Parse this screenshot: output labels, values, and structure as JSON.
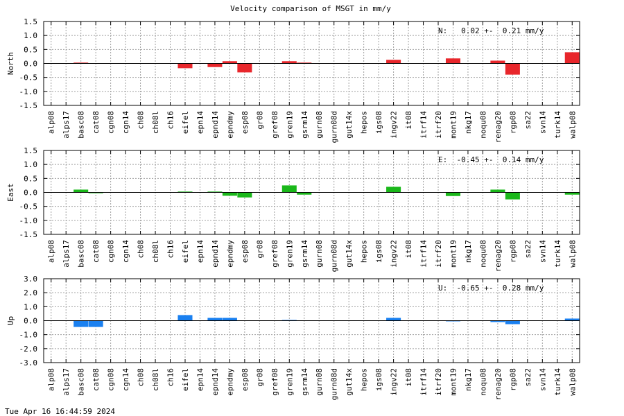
{
  "footer_timestamp": "Tue Apr 16 16:44:59 2024",
  "chart_data": [
    {
      "type": "bar",
      "title": "Velocity comparison of MSGT in mm/y",
      "ylabel": "North",
      "xlabel": "",
      "ylim": [
        -1.5,
        1.5
      ],
      "yticks": [
        "1.5",
        "1.0",
        "0.5",
        "0.0",
        "-0.5",
        "-1.0",
        "-1.5"
      ],
      "grid": true,
      "summary": "N:   0.02 +-  0.21 mm/y",
      "color": "#e8262b",
      "categories": [
        "alp08",
        "alps17",
        "basc08",
        "cat08",
        "cgn08",
        "cgn14",
        "ch08",
        "ch08l",
        "ch16",
        "eifel",
        "epn14",
        "epnd14",
        "epndmy",
        "esp08",
        "gr08",
        "gref08",
        "gren19",
        "gsrm14",
        "gurn08",
        "gurn08d",
        "gut14x",
        "hepos",
        "igs08",
        "ingv22",
        "it08",
        "itrf14",
        "itrf20",
        "mont19",
        "nkg17",
        "noqu08",
        "renag20",
        "rgp08",
        "sa22",
        "svn14",
        "turk14",
        "walp08"
      ],
      "values": [
        0,
        0,
        0.03,
        0,
        0,
        0,
        0,
        0,
        0,
        -0.17,
        0,
        -0.13,
        0.08,
        -0.32,
        0,
        0,
        0.08,
        0.03,
        0,
        0,
        0,
        0,
        0,
        0.13,
        0,
        0,
        0,
        0.18,
        0,
        0,
        0.1,
        -0.4,
        0,
        0,
        0,
        0.4
      ]
    },
    {
      "type": "bar",
      "title": "",
      "ylabel": "East",
      "xlabel": "",
      "ylim": [
        -1.5,
        1.5
      ],
      "yticks": [
        "1.5",
        "1.0",
        "0.5",
        "0.0",
        "-0.5",
        "-1.0",
        "-1.5"
      ],
      "grid": true,
      "summary": "E:  -0.45 +-  0.14 mm/y",
      "color": "#1ab81a",
      "categories": [
        "alp08",
        "alps17",
        "basc08",
        "cat08",
        "cgn08",
        "cgn14",
        "ch08",
        "ch08l",
        "ch16",
        "eifel",
        "epn14",
        "epnd14",
        "epndmy",
        "esp08",
        "gr08",
        "gref08",
        "gren19",
        "gsrm14",
        "gurn08",
        "gurn08d",
        "gut14x",
        "hepos",
        "igs08",
        "ingv22",
        "it08",
        "itrf14",
        "itrf20",
        "mont19",
        "nkg17",
        "noqu08",
        "renag20",
        "rgp08",
        "sa22",
        "svn14",
        "turk14",
        "walp08"
      ],
      "values": [
        0,
        0,
        0.1,
        -0.03,
        0,
        0,
        0,
        0,
        0,
        0.03,
        0,
        0.03,
        -0.12,
        -0.18,
        0,
        0,
        0.25,
        -0.08,
        0,
        0,
        0,
        0,
        0,
        0.2,
        0,
        0,
        0,
        -0.13,
        0,
        0,
        0.1,
        -0.25,
        0,
        0,
        0,
        -0.08
      ]
    },
    {
      "type": "bar",
      "title": "",
      "ylabel": "Up",
      "xlabel": "",
      "ylim": [
        -3.0,
        3.0
      ],
      "yticks": [
        "3.0",
        "2.0",
        "1.0",
        "0.0",
        "-1.0",
        "-2.0",
        "-3.0"
      ],
      "grid": true,
      "summary": "U:  -0.65 +-  0.28 mm/y",
      "color": "#1a80f0",
      "categories": [
        "alp08",
        "alps17",
        "basc08",
        "cat08",
        "cgn08",
        "cgn14",
        "ch08",
        "ch08l",
        "ch16",
        "eifel",
        "epn14",
        "epnd14",
        "epndmy",
        "esp08",
        "gr08",
        "gref08",
        "gren19",
        "gsrm14",
        "gurn08",
        "gurn08d",
        "gut14x",
        "hepos",
        "igs08",
        "ingv22",
        "it08",
        "itrf14",
        "itrf20",
        "mont19",
        "nkg17",
        "noqu08",
        "renag20",
        "rgp08",
        "sa22",
        "svn14",
        "turk14",
        "walp08"
      ],
      "values": [
        0,
        0,
        -0.45,
        -0.45,
        0,
        0,
        0,
        0,
        0,
        0.4,
        0,
        0.2,
        0.2,
        0,
        0,
        0,
        0.05,
        0,
        0,
        0,
        0,
        0,
        0,
        0.2,
        0,
        0,
        0,
        -0.05,
        0,
        0,
        -0.1,
        -0.25,
        0,
        0,
        0,
        0.15
      ]
    }
  ]
}
